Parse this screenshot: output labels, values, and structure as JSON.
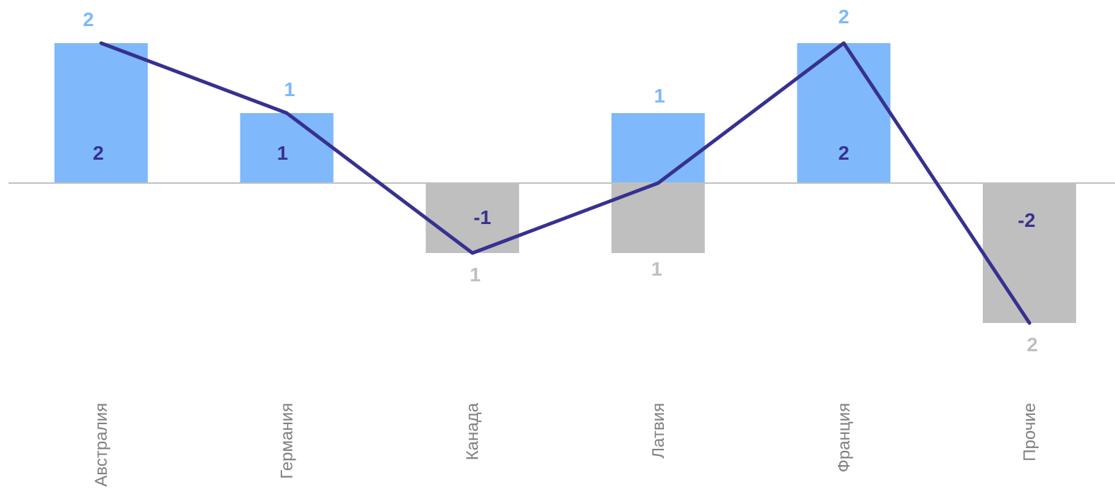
{
  "chart_data": {
    "type": "bar",
    "categories": [
      "Австралия",
      "Германия",
      "Канада",
      "Латвия",
      "Франция",
      "Прочие"
    ],
    "series": [
      {
        "type": "bar",
        "values": [
          2,
          1,
          1,
          1,
          2,
          2
        ],
        "color_positive": "#7fb8fb",
        "color_negative": "#bfbfbf"
      },
      {
        "type": "bar",
        "values": [
          0,
          0,
          -1,
          -1,
          0,
          -2
        ]
      },
      {
        "type": "line",
        "values": [
          2,
          1,
          -1,
          0,
          2,
          -2
        ],
        "color": "#36318f"
      }
    ],
    "bar_labels": [
      "2",
      "1",
      "1",
      "1",
      "2",
      "2"
    ],
    "line_labels": [
      "2",
      "1",
      "-1",
      "",
      "2",
      "-2"
    ],
    "ylim": [
      -2,
      2
    ],
    "xlabel": "",
    "ylabel": "",
    "title": "",
    "grid": false,
    "legend": "none"
  }
}
